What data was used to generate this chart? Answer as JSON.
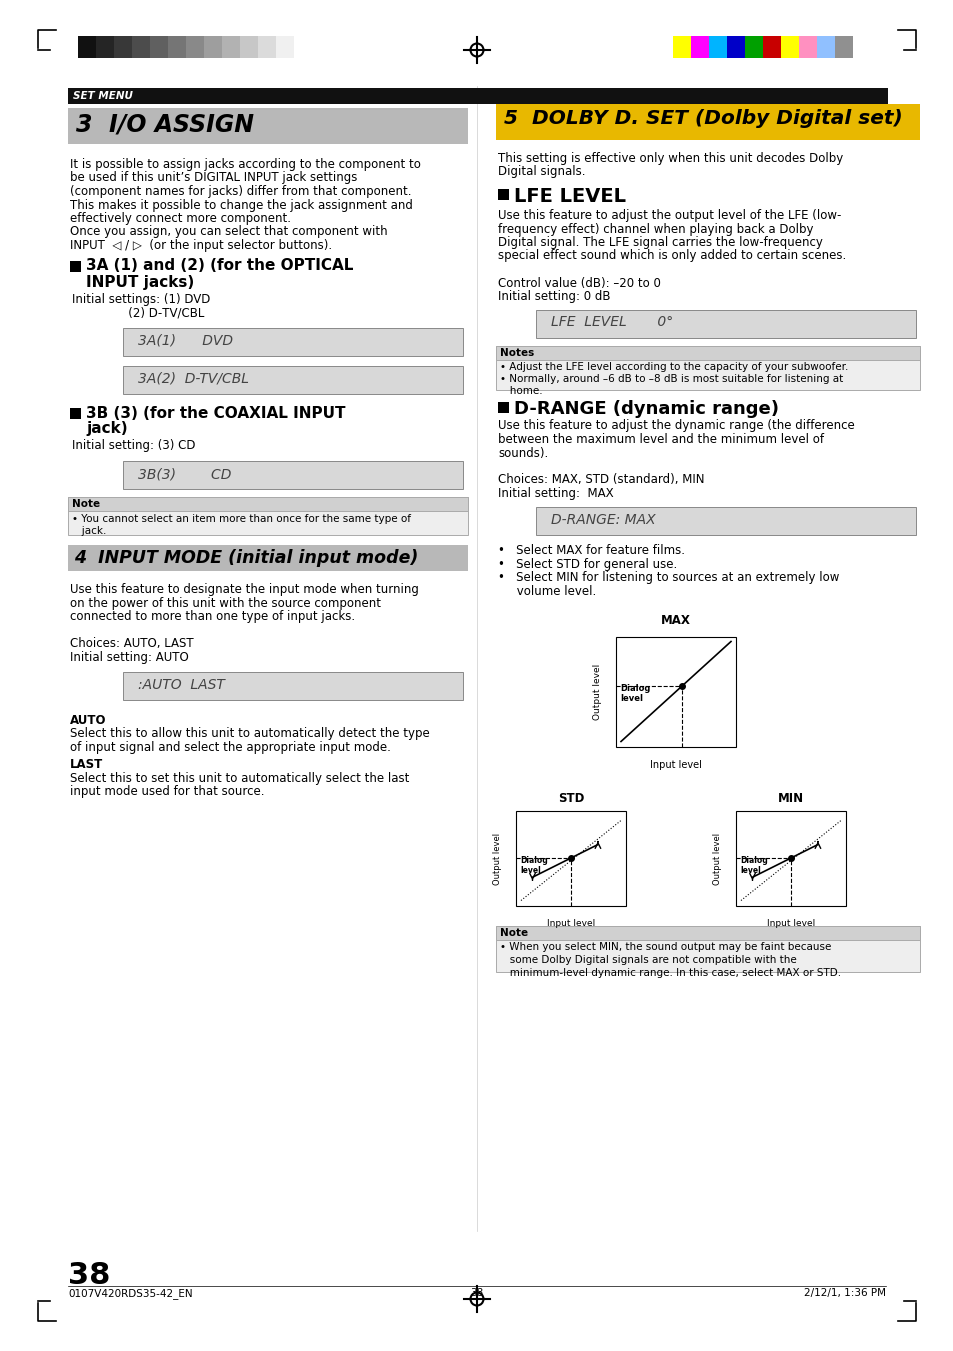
{
  "page_bg": "#ffffff",
  "page_number": "38",
  "footer_left": "0107V420RDS35-42_EN",
  "footer_center": "38",
  "footer_right": "2/12/1, 1:36 PM",
  "set_menu_label": "SET MENU",
  "section3_title": "3  I/O ASSIGN",
  "section3_body": [
    "It is possible to assign jacks according to the component to",
    "be used if this unit’s DIGITAL INPUT jack settings",
    "(component names for jacks) differ from that component.",
    "This makes it possible to change the jack assignment and",
    "effectively connect more component.",
    "Once you assign, you can select that component with",
    "INPUT  ◁ / ▷  (or the input selector buttons)."
  ],
  "sub3a_title1": "3A (1) and (2) (for the OPTICAL",
  "sub3a_title2": "INPUT jacks)",
  "sub3a_init1": "Initial settings: (1) DVD",
  "sub3a_init2": "               (2) D‑TV/CBL",
  "lcd3a1": "3A(1)      DVD",
  "lcd3a2": "3A(2)  D-TV/CBL",
  "sub3b_title1": "3B (3) (for the COAXIAL INPUT",
  "sub3b_title2": "jack)",
  "sub3b_init": "Initial setting: (3) CD",
  "lcd3b": "3B(3)        CD",
  "note3_label": "Note",
  "note3_line1": "• You cannot select an item more than once for the same type of",
  "note3_line2": "   jack.",
  "section4_title": "4  INPUT MODE (initial input mode)",
  "section4_body": [
    "Use this feature to designate the input mode when turning",
    "on the power of this unit with the source component",
    "connected to more than one type of input jacks.",
    "",
    "Choices: AUTO, LAST",
    "Initial setting: AUTO"
  ],
  "lcd4": ":AUTO  LAST",
  "auto_title": "AUTO",
  "auto_body": [
    "Select this to allow this unit to automatically detect the type",
    "of input signal and select the appropriate input mode."
  ],
  "last_title": "LAST",
  "last_body": [
    "Select this to set this unit to automatically select the last",
    "input mode used for that source."
  ],
  "section5_title": "5  DOLBY D. SET (Dolby Digital set)",
  "section5_intro": [
    "This setting is effective only when this unit decodes Dolby",
    "Digital signals."
  ],
  "lfe_title": "LFE LEVEL",
  "lfe_body": [
    "Use this feature to adjust the output level of the LFE (low-",
    "frequency effect) channel when playing back a Dolby",
    "Digital signal. The LFE signal carries the low-frequency",
    "special effect sound which is only added to certain scenes.",
    "",
    "Control value (dB): –20 to 0",
    "Initial setting: 0 dB"
  ],
  "lcd_lfe": "LFE  LEVEL       0°",
  "notes_lfe_label": "Notes",
  "notes_lfe_body": [
    "• Adjust the LFE level according to the capacity of your subwoofer.",
    "• Normally, around –6 dB to –8 dB is most suitable for listening at",
    "   home."
  ],
  "drange_title": "D-RANGE (dynamic range)",
  "drange_body": [
    "Use this feature to adjust the dynamic range (the difference",
    "between the maximum level and the minimum level of",
    "sounds).",
    "",
    "Choices: MAX, STD (standard), MIN",
    "Initial setting:  MAX"
  ],
  "lcd_drange": "D-RANGE: MAX",
  "drange_bullet1": "•   Select MAX for feature films.",
  "drange_bullet2": "•   Select STD for general use.",
  "drange_bullet3": "•   Select MIN for listening to sources at an extremely low",
  "drange_bullet3b": "     volume level.",
  "note_drange_label": "Note",
  "note_drange_body": [
    "• When you select MIN, the sound output may be faint because",
    "   some Dolby Digital signals are not compatible with the",
    "   minimum-level dynamic range. In this case, select MAX or STD."
  ],
  "grayscale_bars": [
    "#111111",
    "#252525",
    "#383838",
    "#4c4c4c",
    "#606060",
    "#757575",
    "#898989",
    "#9e9e9e",
    "#b2b2b2",
    "#c7c7c7",
    "#dbdbdb",
    "#f0f0f0"
  ],
  "color_bars": [
    "#ffff00",
    "#ff00ff",
    "#00b4ff",
    "#0000c8",
    "#00a000",
    "#c80000",
    "#ffff00",
    "#ff90c0",
    "#90c0ff",
    "#909090"
  ],
  "colors": {
    "black": "#000000",
    "white": "#ffffff",
    "section3_bg": "#b8b8b8",
    "section4_bg": "#b8b8b8",
    "section5_bg": "#e8b800",
    "set_menu_bg": "#111111",
    "note_bg": "#e0e0e0",
    "note_header_bg": "#c8c8c8",
    "lcd_bg": "#d8d8d8",
    "lcd_border": "#888888"
  }
}
